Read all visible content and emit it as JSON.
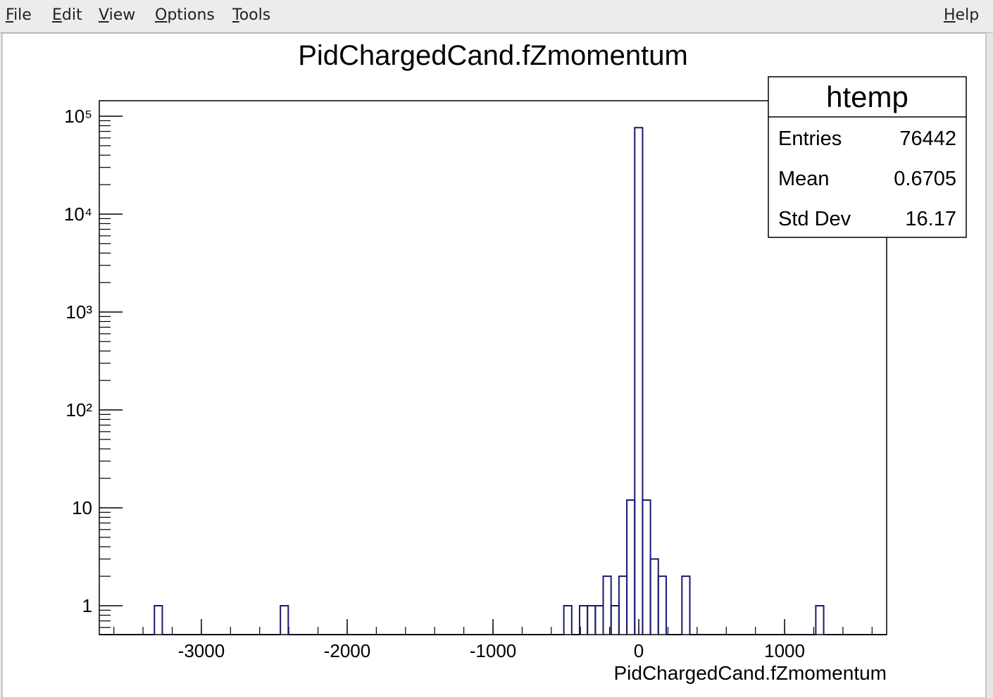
{
  "menu": {
    "left": [
      "File",
      "Edit",
      "View",
      "Options",
      "Tools"
    ],
    "right": [
      "Help"
    ]
  },
  "chart_data": {
    "type": "histogram",
    "title": "PidChargedCand.fZmomentum",
    "x_label": "PidChargedCand.fZmomentum",
    "color": "#1a1a6e",
    "log_y": true,
    "bins": [
      -3700,
      -3646,
      -3592,
      -3538,
      -3484,
      -3430,
      -3376,
      -3322,
      -3268,
      -3214,
      -3160,
      -3106,
      -3052,
      -2998,
      -2944,
      -2890,
      -2836,
      -2782,
      -2728,
      -2674,
      -2620,
      -2566,
      -2512,
      -2458,
      -2404,
      -2350,
      -2296,
      -2242,
      -2188,
      -2134,
      -2080,
      -2026,
      -1972,
      -1918,
      -1864,
      -1810,
      -1756,
      -1702,
      -1648,
      -1594,
      -1540,
      -1486,
      -1432,
      -1378,
      -1324,
      -1270,
      -1216,
      -1162,
      -1108,
      -1054,
      -1000,
      -946,
      -892,
      -838,
      -784,
      -730,
      -676,
      -622,
      -568,
      -514,
      -460,
      -406,
      -352,
      -298,
      -244,
      -190,
      -136,
      -82,
      -28,
      26,
      80,
      134,
      188,
      242,
      296,
      350,
      404,
      458,
      512,
      566,
      620,
      674,
      728,
      782,
      836,
      890,
      944,
      998,
      1052,
      1106,
      1160,
      1214,
      1268,
      1322,
      1376,
      1430,
      1484,
      1538,
      1592,
      1646,
      1700
    ],
    "values": [
      0,
      0,
      0,
      0,
      0,
      0,
      0,
      1,
      0,
      0,
      0,
      0,
      0,
      0,
      0,
      0,
      0,
      0,
      0,
      0,
      0,
      0,
      0,
      1,
      0,
      0,
      0,
      0,
      0,
      0,
      0,
      0,
      0,
      0,
      0,
      0,
      0,
      0,
      0,
      0,
      0,
      0,
      0,
      0,
      0,
      0,
      0,
      0,
      0,
      0,
      0,
      0,
      0,
      0,
      0,
      0,
      0,
      0,
      0,
      1,
      0,
      1,
      1,
      1,
      2,
      1,
      2,
      12,
      76399,
      12,
      3,
      2,
      0,
      0,
      2,
      0,
      0,
      0,
      0,
      0,
      0,
      0,
      0,
      0,
      0,
      0,
      0,
      0,
      0,
      0,
      0,
      1,
      0,
      0,
      0,
      0,
      0,
      0,
      0,
      0
    ],
    "xlim": [
      -3700,
      1700
    ],
    "xticks": [
      -3000,
      -2000,
      -1000,
      0,
      1000
    ],
    "ylim": [
      0.507,
      144000
    ],
    "yticks": [
      1,
      10,
      {
        "value": 100,
        "label": "10²"
      },
      {
        "value": 1000,
        "label": "10³"
      },
      {
        "value": 10000,
        "label": "10⁴"
      },
      {
        "value": 100000,
        "label": "10⁵"
      }
    ],
    "stats": {
      "title": "htemp",
      "rows": [
        {
          "label": "Entries",
          "value": 76442
        },
        {
          "label": "Mean",
          "value": 0.6705
        },
        {
          "label": "Std Dev",
          "value": 16.17
        }
      ]
    }
  }
}
